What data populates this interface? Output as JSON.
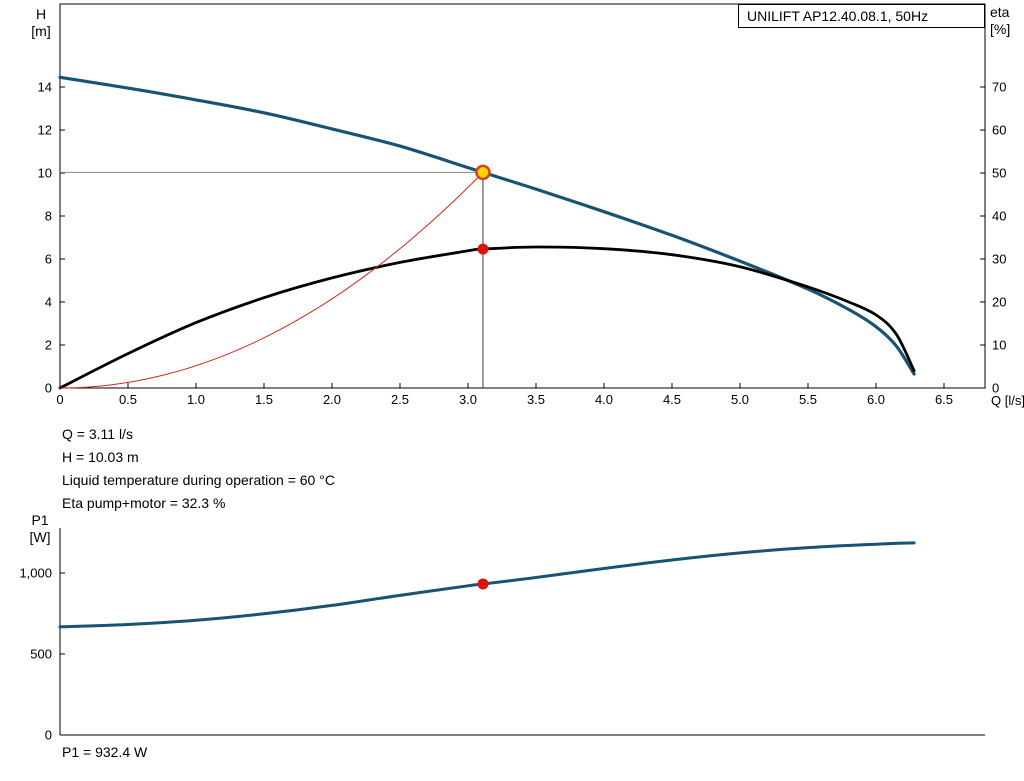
{
  "title_box": {
    "label": "UNILIFT AP12.40.08.1, 50Hz"
  },
  "colors": {
    "head_curve": "#1a5276",
    "eta_curve": "#000000",
    "system_curve": "#cc2a1f",
    "p1_curve": "#1a5276",
    "duty_marker_fill": "#ffd400",
    "duty_marker_ring": "#d84315",
    "point_marker": "#e01309",
    "crosshair_h": "#8a8a8a",
    "crosshair_v": "#3c3c3c",
    "axis": "#000000"
  },
  "readout": {
    "lines": [
      "Q = 3.11 l/s",
      "H = 10.03 m",
      "Liquid temperature during operation = 60 °C",
      "Eta pump+motor = 32.3 %"
    ],
    "p1_line": "P1 = 932.4 W"
  },
  "chart_data": [
    {
      "type": "line",
      "title": "UNILIFT AP12.40.08.1, 50Hz",
      "grid": false,
      "legend_position": "none",
      "x_axis": {
        "label": "Q [l/s]",
        "range": [
          0,
          6.8
        ],
        "ticks": [
          {
            "v": 0,
            "label": "0"
          },
          {
            "v": 0.5,
            "label": "0.5"
          },
          {
            "v": 1,
            "label": "1.0"
          },
          {
            "v": 1.5,
            "label": "1.5"
          },
          {
            "v": 2,
            "label": "2.0"
          },
          {
            "v": 2.5,
            "label": "2.5"
          },
          {
            "v": 3,
            "label": "3.0"
          },
          {
            "v": 3.5,
            "label": "3.5"
          },
          {
            "v": 4,
            "label": "4.0"
          },
          {
            "v": 4.5,
            "label": "4.5"
          },
          {
            "v": 5,
            "label": "5.0"
          },
          {
            "v": 5.5,
            "label": "5.5"
          },
          {
            "v": 6,
            "label": "6.0"
          },
          {
            "v": 6.5,
            "label": "6.5"
          }
        ]
      },
      "y_axis_left": {
        "label_lines": [
          "H",
          "[m]"
        ],
        "range": [
          0,
          16
        ],
        "ticks": [
          {
            "v": 0,
            "label": "0"
          },
          {
            "v": 2,
            "label": "2"
          },
          {
            "v": 4,
            "label": "4"
          },
          {
            "v": 6,
            "label": "6"
          },
          {
            "v": 8,
            "label": "8"
          },
          {
            "v": 10,
            "label": "10"
          },
          {
            "v": 12,
            "label": "12"
          },
          {
            "v": 14,
            "label": "14"
          }
        ]
      },
      "y_axis_right": {
        "label_lines": [
          "eta",
          "[%]"
        ],
        "range": [
          0,
          80
        ],
        "ticks": [
          {
            "v": 0,
            "label": "0"
          },
          {
            "v": 10,
            "label": "10"
          },
          {
            "v": 20,
            "label": "20"
          },
          {
            "v": 30,
            "label": "30"
          },
          {
            "v": 40,
            "label": "40"
          },
          {
            "v": 50,
            "label": "50"
          },
          {
            "v": 60,
            "label": "60"
          },
          {
            "v": 70,
            "label": "70"
          }
        ]
      },
      "series": [
        {
          "name": "head",
          "axis": "left",
          "color": "head_curve",
          "width": 3.2,
          "points": [
            [
              0,
              14.45
            ],
            [
              0.5,
              13.95
            ],
            [
              1.0,
              13.4
            ],
            [
              1.5,
              12.8
            ],
            [
              2.0,
              12.05
            ],
            [
              2.5,
              11.25
            ],
            [
              3.0,
              10.25
            ],
            [
              3.11,
              10.03
            ],
            [
              3.5,
              9.25
            ],
            [
              4.0,
              8.2
            ],
            [
              4.5,
              7.1
            ],
            [
              5.0,
              5.9
            ],
            [
              5.5,
              4.6
            ],
            [
              5.8,
              3.65
            ],
            [
              6.0,
              2.85
            ],
            [
              6.15,
              1.95
            ],
            [
              6.28,
              0.65
            ]
          ]
        },
        {
          "name": "eta-pump-motor",
          "axis": "right",
          "color": "eta_curve",
          "width": 2.8,
          "points": [
            [
              0,
              0
            ],
            [
              0.5,
              8
            ],
            [
              1.0,
              15.2
            ],
            [
              1.5,
              21.0
            ],
            [
              2.0,
              25.6
            ],
            [
              2.5,
              29.2
            ],
            [
              3.0,
              31.9
            ],
            [
              3.11,
              32.3
            ],
            [
              3.5,
              32.8
            ],
            [
              4.0,
              32.4
            ],
            [
              4.5,
              31.0
            ],
            [
              5.0,
              28.2
            ],
            [
              5.5,
              23.5
            ],
            [
              5.8,
              20.0
            ],
            [
              6.0,
              17.0
            ],
            [
              6.15,
              12.5
            ],
            [
              6.28,
              4.0
            ]
          ]
        },
        {
          "name": "system-curve",
          "axis": "left",
          "color": "system_curve",
          "width": 1,
          "quadratic_through": [
            3.11,
            10.03
          ]
        }
      ],
      "operating_point": {
        "q": 3.11,
        "h": 10.03,
        "eta": 32.3
      }
    },
    {
      "type": "line",
      "grid": false,
      "legend_position": "none",
      "x_axis": {
        "label": "",
        "range": [
          0,
          6.8
        ],
        "ticks": []
      },
      "y_axis_left": {
        "label_lines": [
          "P1",
          "[W]"
        ],
        "range": [
          0,
          1280
        ],
        "ticks": [
          {
            "v": 0,
            "label": "0"
          },
          {
            "v": 500,
            "label": "500"
          },
          {
            "v": 1000,
            "label": "1,000"
          }
        ]
      },
      "series": [
        {
          "name": "p1-power",
          "axis": "left",
          "color": "p1_curve",
          "width": 3,
          "points": [
            [
              0,
              668
            ],
            [
              0.5,
              682
            ],
            [
              1.0,
              708
            ],
            [
              1.5,
              748
            ],
            [
              2.0,
              800
            ],
            [
              2.5,
              862
            ],
            [
              3.0,
              921
            ],
            [
              3.11,
              932.4
            ],
            [
              3.5,
              972
            ],
            [
              4.0,
              1028
            ],
            [
              4.5,
              1080
            ],
            [
              5.0,
              1124
            ],
            [
              5.5,
              1157
            ],
            [
              6.0,
              1178
            ],
            [
              6.28,
              1186
            ]
          ]
        }
      ],
      "operating_point": {
        "q": 3.11,
        "p1": 932.4
      }
    }
  ]
}
